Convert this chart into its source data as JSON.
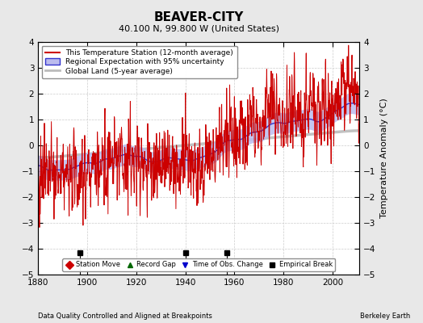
{
  "title": "BEAVER-CITY",
  "subtitle": "40.100 N, 99.800 W (United States)",
  "ylabel": "Temperature Anomaly (°C)",
  "xlabel_left": "Data Quality Controlled and Aligned at Breakpoints",
  "xlabel_right": "Berkeley Earth",
  "ylim": [
    -5,
    4
  ],
  "xlim": [
    1880,
    2011
  ],
  "xticks": [
    1880,
    1900,
    1920,
    1940,
    1960,
    1980,
    2000
  ],
  "yticks": [
    -5,
    -4,
    -3,
    -2,
    -1,
    0,
    1,
    2,
    3,
    4
  ],
  "legend_entries": [
    "This Temperature Station (12-month average)",
    "Regional Expectation with 95% uncertainty",
    "Global Land (5-year average)"
  ],
  "marker_legend": [
    {
      "label": "Station Move",
      "color": "#cc0000",
      "marker": "D"
    },
    {
      "label": "Record Gap",
      "color": "#006600",
      "marker": "^"
    },
    {
      "label": "Time of Obs. Change",
      "color": "#0000cc",
      "marker": "v"
    },
    {
      "label": "Empirical Break",
      "color": "#000000",
      "marker": "s"
    }
  ],
  "empirical_breaks": [
    1897,
    1940,
    1957
  ],
  "bg_color": "#e8e8e8",
  "plot_bg_color": "#ffffff",
  "station_color": "#cc0000",
  "regional_color": "#3333cc",
  "regional_fill_color": "#bbbbee",
  "global_color": "#bbbbbb",
  "seed": 42
}
